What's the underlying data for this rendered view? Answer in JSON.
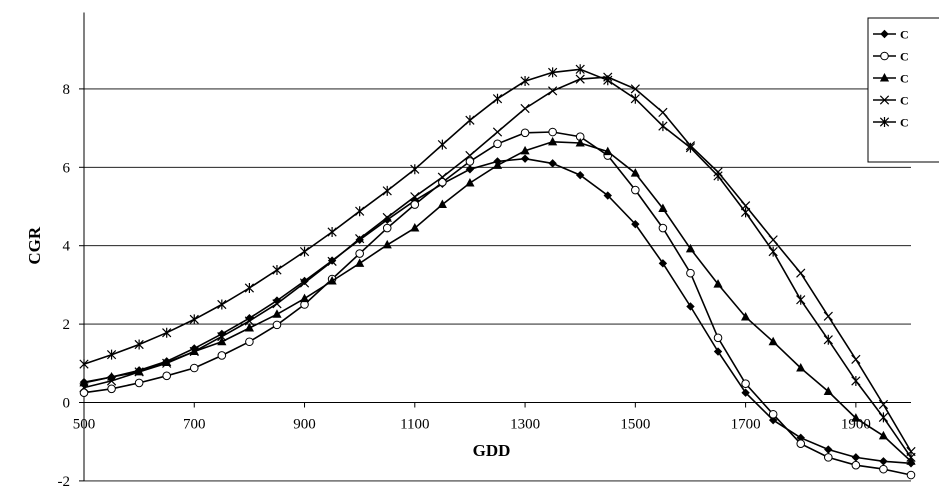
{
  "chart_data": {
    "type": "line",
    "title": "",
    "xlabel": "GDD",
    "ylabel": "CGR",
    "xlim": [
      500,
      2000
    ],
    "ylim": [
      -2,
      10
    ],
    "x_ticks": [
      "500",
      "700",
      "900",
      "1100",
      "1300",
      "1500",
      "1700",
      "1900"
    ],
    "y_ticks": [
      "-2",
      "0",
      "2",
      "4",
      "6",
      "8"
    ],
    "grid": "horizontal",
    "legend_position": "top-right",
    "x": [
      500,
      550,
      600,
      650,
      700,
      750,
      800,
      850,
      900,
      950,
      1000,
      1050,
      1100,
      1150,
      1200,
      1250,
      1300,
      1350,
      1400,
      1450,
      1500,
      1550,
      1600,
      1650,
      1700,
      1750,
      1800,
      1850,
      1900,
      1950,
      2000
    ],
    "series": [
      {
        "name": "C",
        "marker": "diamond",
        "values": [
          0.52,
          0.65,
          0.82,
          1.05,
          1.38,
          1.75,
          2.15,
          2.6,
          3.1,
          3.62,
          4.15,
          4.66,
          5.15,
          5.58,
          5.95,
          6.15,
          6.22,
          6.1,
          5.8,
          5.28,
          4.55,
          3.55,
          2.45,
          1.3,
          0.25,
          -0.45,
          -0.9,
          -1.2,
          -1.4,
          -1.5,
          -1.55
        ]
      },
      {
        "name": "C",
        "marker": "circle",
        "values": [
          0.25,
          0.35,
          0.5,
          0.68,
          0.88,
          1.2,
          1.55,
          1.98,
          2.5,
          3.15,
          3.8,
          4.45,
          5.05,
          5.62,
          6.15,
          6.6,
          6.88,
          6.9,
          6.78,
          6.3,
          5.42,
          4.45,
          3.3,
          1.65,
          0.48,
          -0.3,
          -1.05,
          -1.4,
          -1.6,
          -1.7,
          -1.85
        ]
      },
      {
        "name": "C",
        "marker": "triangle",
        "values": [
          0.5,
          0.65,
          0.78,
          1.02,
          1.3,
          1.55,
          1.9,
          2.25,
          2.65,
          3.1,
          3.55,
          4.02,
          4.45,
          5.05,
          5.6,
          6.05,
          6.42,
          6.65,
          6.62,
          6.4,
          5.85,
          4.95,
          3.92,
          3.02,
          2.18,
          1.55,
          0.88,
          0.28,
          -0.4,
          -0.85,
          -1.5
        ]
      },
      {
        "name": "C",
        "marker": "x",
        "values": [
          0.38,
          0.55,
          0.78,
          1.0,
          1.3,
          1.68,
          2.08,
          2.52,
          3.05,
          3.6,
          4.18,
          4.72,
          5.25,
          5.75,
          6.3,
          6.9,
          7.5,
          7.95,
          8.25,
          8.3,
          8.0,
          7.4,
          6.55,
          5.88,
          5.02,
          4.15,
          3.3,
          2.2,
          1.1,
          -0.05,
          -1.25
        ]
      },
      {
        "name": "C",
        "marker": "star",
        "values": [
          0.98,
          1.22,
          1.48,
          1.78,
          2.12,
          2.5,
          2.92,
          3.38,
          3.85,
          4.35,
          4.88,
          5.4,
          5.95,
          6.58,
          7.2,
          7.75,
          8.2,
          8.42,
          8.5,
          8.22,
          7.75,
          7.05,
          6.5,
          5.78,
          4.85,
          3.85,
          2.62,
          1.6,
          0.55,
          -0.38,
          -1.4
        ]
      }
    ]
  }
}
